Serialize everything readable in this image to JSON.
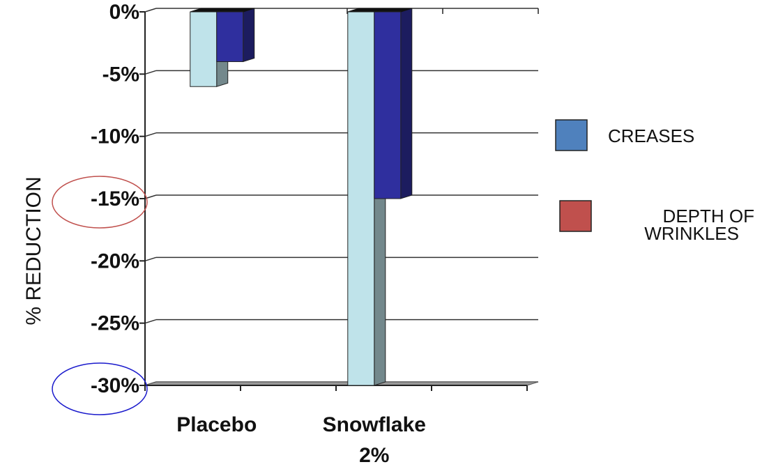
{
  "chart_data": {
    "type": "bar",
    "categories": [
      "Placebo",
      "Snowflake\n2%"
    ],
    "series": [
      {
        "name": "DEPTH OF WRINKLES",
        "values": [
          -6,
          -30
        ],
        "color": "#bfe3ea"
      },
      {
        "name": "CREASES",
        "values": [
          -4,
          -15
        ],
        "color": "#2f2f9e"
      }
    ],
    "legend": [
      {
        "label": "CREASES",
        "swatch_color": "#4f81bd"
      },
      {
        "label": "DEPTH OF WRINKLES",
        "swatch_color": "#c0504d"
      }
    ],
    "xlabel": "",
    "ylabel": "% REDUCTION",
    "yticks": [
      "0%",
      "-5%",
      "-10%",
      "-15%",
      "-20%",
      "-25%",
      "-30%"
    ],
    "ylim": [
      -30,
      0
    ],
    "grid": true,
    "legend_position": "right",
    "annotations": [
      {
        "type": "ellipse",
        "target_tick": "-15%",
        "color": "#c0504d"
      },
      {
        "type": "ellipse",
        "target_tick": "-30%",
        "color": "#1a1acc"
      }
    ]
  }
}
